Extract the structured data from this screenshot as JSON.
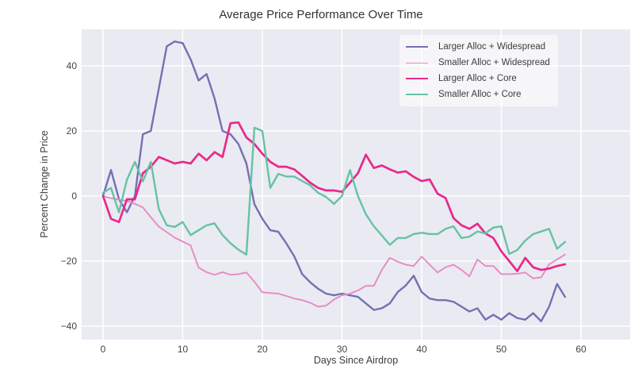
{
  "title": "Average Price Performance Over Time",
  "axes": {
    "xlabel": "Days Since Airdrop",
    "ylabel": "Percent Change in Price",
    "x_ticks": [
      0,
      10,
      20,
      30,
      40,
      50,
      60
    ],
    "x_tick_labels": [
      "0",
      "10",
      "20",
      "30",
      "40",
      "50",
      "60"
    ],
    "y_ticks": [
      -40,
      -20,
      0,
      20,
      40
    ],
    "y_tick_labels": [
      "−40",
      "−20",
      "0",
      "20",
      "40"
    ]
  },
  "style": {
    "plot_bg": "#eaeaf2",
    "grid_color": "#ffffff",
    "text_color": "#333333",
    "tick_color": "#444444"
  },
  "chart_data": {
    "type": "line",
    "title": "Average Price Performance Over Time",
    "xlabel": "Days Since Airdrop",
    "ylabel": "Percent Change in Price",
    "xlim": [
      -2.9,
      66
    ],
    "ylim": [
      -44,
      51.5
    ],
    "grid": true,
    "legend_position": "upper right",
    "x": [
      0,
      1,
      2,
      3,
      4,
      5,
      6,
      7,
      8,
      9,
      10,
      11,
      12,
      13,
      14,
      15,
      16,
      17,
      18,
      19,
      20,
      21,
      22,
      23,
      24,
      25,
      26,
      27,
      28,
      29,
      30,
      31,
      32,
      33,
      34,
      35,
      36,
      37,
      38,
      39,
      40,
      41,
      42,
      43,
      44,
      45,
      46,
      47,
      48,
      49,
      50,
      51,
      52,
      53,
      54,
      55,
      56,
      57,
      58
    ],
    "series": [
      {
        "name": "Larger Alloc + Widespread",
        "color": "#7570b3",
        "width": 2.4,
        "values": [
          0,
          8,
          -1,
          -5,
          0,
          19,
          20,
          33,
          46,
          47.5,
          47,
          42,
          35.5,
          37.5,
          30,
          20,
          19,
          16,
          10,
          -2.5,
          -7,
          -10.5,
          -11,
          -14.5,
          -18.5,
          -24,
          -26.5,
          -28.5,
          -30,
          -30.5,
          -30,
          -30.5,
          -31,
          -33,
          -35,
          -34.5,
          -33,
          -29.5,
          -27.5,
          -24.5,
          -29.5,
          -31.5,
          -32,
          -32,
          -32.5,
          -34,
          -35.5,
          -34.5,
          -38,
          -36.5,
          -38,
          -36,
          -37.5,
          -38,
          -36,
          -38.5,
          -34,
          -27,
          -31
        ]
      },
      {
        "name": "Smaller Alloc + Widespread",
        "color": "#e78ac3",
        "width": 1.9,
        "values": [
          0,
          -0.7,
          -1.1,
          -1.5,
          -2.4,
          -3.5,
          -6.5,
          -9.4,
          -11.1,
          -12.8,
          -14,
          -15.2,
          -22,
          -23.4,
          -24.2,
          -23.4,
          -24.2,
          -24,
          -23.5,
          -26.3,
          -29.6,
          -29.8,
          -30,
          -30.7,
          -31.5,
          -32,
          -32.8,
          -34,
          -33.7,
          -31.8,
          -30.5,
          -30,
          -29,
          -27.6,
          -27.6,
          -22.7,
          -19,
          -20.2,
          -21.1,
          -21.5,
          -18.6,
          -21.1,
          -23.5,
          -21.9,
          -21.1,
          -22.7,
          -24.7,
          -19.5,
          -21.5,
          -21.5,
          -24,
          -24,
          -23.9,
          -23.5,
          -25.3,
          -25,
          -21,
          -19.5,
          -18
        ]
      },
      {
        "name": "Larger Alloc + Core",
        "color": "#e7298a",
        "width": 2.7,
        "values": [
          0,
          -7,
          -8,
          -1,
          -1,
          7,
          9,
          12,
          11,
          10,
          10.5,
          10,
          13,
          11,
          13.5,
          12,
          22.4,
          22.6,
          18,
          16,
          13,
          10.5,
          9,
          9,
          8.2,
          6.2,
          4.1,
          2.5,
          1.7,
          1.7,
          1.3,
          4.1,
          7,
          12.7,
          8.6,
          9.4,
          8.2,
          7.2,
          7.6,
          5.9,
          4.6,
          5.1,
          0.7,
          -0.6,
          -6.8,
          -9,
          -10.1,
          -8.5,
          -11.5,
          -12.9,
          -17,
          -20,
          -23.1,
          -19,
          -21.9,
          -22.7,
          -22.3,
          -21.5,
          -21
        ]
      },
      {
        "name": "Smaller Alloc + Core",
        "color": "#66c2a5",
        "width": 2.4,
        "values": [
          1,
          2.5,
          -5,
          5,
          10.5,
          4.5,
          10.5,
          -4,
          -9,
          -9.5,
          -8,
          -12,
          -10.5,
          -9,
          -8.4,
          -12,
          -14.5,
          -16.5,
          -18,
          21,
          20,
          2.5,
          6.8,
          6,
          6,
          4.6,
          3.3,
          1,
          -0.3,
          -2.4,
          0,
          8,
          0,
          -5.6,
          -9.3,
          -12.1,
          -15,
          -12.9,
          -12.9,
          -11.7,
          -11.3,
          -11.7,
          -11.7,
          -10.1,
          -9.3,
          -12.9,
          -12.5,
          -10.9,
          -11.5,
          -9.7,
          -9.3,
          -17.8,
          -16.6,
          -13.7,
          -11.7,
          -10.9,
          -10.1,
          -16.2,
          -14.1
        ]
      }
    ]
  }
}
